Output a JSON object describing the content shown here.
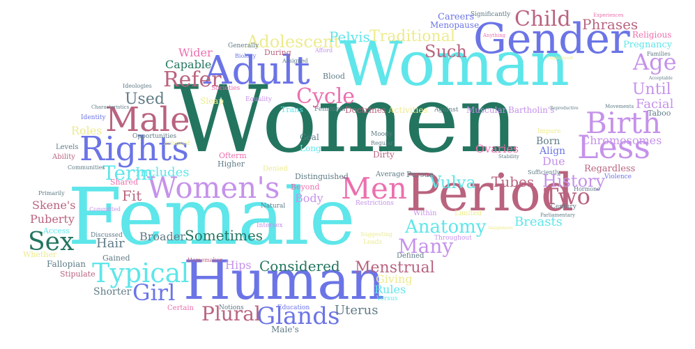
{
  "colors": {
    "teal_dark": "#23755f",
    "cyan": "#5ee6ea",
    "blue": "#6b74e6",
    "mauve": "#b9637e",
    "lavender": "#c592ea",
    "pink": "#ec6fae",
    "yellow": "#eceb8e",
    "grey": "#5f7b86"
  },
  "words": [
    {
      "text": "Women",
      "color": "teal_dark"
    },
    {
      "text": "Female",
      "color": "cyan"
    },
    {
      "text": "Woman",
      "color": "cyan"
    },
    {
      "text": "Human",
      "color": "blue"
    },
    {
      "text": "Period",
      "color": "mauve"
    },
    {
      "text": "Gender",
      "color": "blue"
    },
    {
      "text": "Adult",
      "color": "blue"
    },
    {
      "text": "Rights",
      "color": "blue"
    },
    {
      "text": "Women's",
      "color": "lavender"
    },
    {
      "text": "Male",
      "color": "mauve"
    },
    {
      "text": "Men",
      "color": "pink"
    },
    {
      "text": "Less",
      "color": "lavender"
    },
    {
      "text": "Birth",
      "color": "lavender"
    },
    {
      "text": "Typical",
      "color": "cyan"
    },
    {
      "text": "Sex",
      "color": "teal_dark"
    },
    {
      "text": "Term",
      "color": "cyan"
    },
    {
      "text": "Glands",
      "color": "blue"
    },
    {
      "text": "Girl",
      "color": "blue"
    },
    {
      "text": "Child",
      "color": "mauve"
    },
    {
      "text": "Age",
      "color": "lavender"
    },
    {
      "text": "Two",
      "color": "mauve"
    },
    {
      "text": "Cycle",
      "color": "pink"
    },
    {
      "text": "Refer",
      "color": "mauve"
    },
    {
      "text": "Anatomy",
      "color": "cyan"
    },
    {
      "text": "Plural",
      "color": "mauve"
    },
    {
      "text": "Many",
      "color": "lavender"
    },
    {
      "text": "Vulva",
      "color": "cyan"
    },
    {
      "text": "History",
      "color": "lavender"
    },
    {
      "text": "Menstrual",
      "color": "mauve"
    },
    {
      "text": "Adolescent",
      "color": "yellow"
    },
    {
      "text": "Such",
      "color": "mauve"
    },
    {
      "text": "Traditional",
      "color": "yellow"
    },
    {
      "text": "Phrases",
      "color": "mauve"
    },
    {
      "text": "Pelvis",
      "color": "cyan"
    },
    {
      "text": "Until",
      "color": "lavender"
    },
    {
      "text": "Used",
      "color": "grey"
    },
    {
      "text": "Considered",
      "color": "teal_dark"
    },
    {
      "text": "Sometimes",
      "color": "teal_dark"
    },
    {
      "text": "Hair",
      "color": "grey"
    },
    {
      "text": "Uterus",
      "color": "grey"
    },
    {
      "text": "Includes",
      "color": "cyan"
    },
    {
      "text": "Tubes",
      "color": "mauve"
    },
    {
      "text": "Breasts",
      "color": "cyan"
    },
    {
      "text": "Facial",
      "color": "lavender"
    },
    {
      "text": "Chromosomes",
      "color": "lavender"
    },
    {
      "text": "Broader",
      "color": "grey"
    },
    {
      "text": "Fit",
      "color": "mauve"
    },
    {
      "text": "Body",
      "color": "lavender"
    },
    {
      "text": "Ovaries",
      "color": "pink"
    },
    {
      "text": "Due",
      "color": "lavender"
    },
    {
      "text": "Giving",
      "color": "yellow"
    },
    {
      "text": "Rules",
      "color": "cyan"
    },
    {
      "text": "Hips",
      "color": "lavender"
    },
    {
      "text": "Roles",
      "color": "yellow"
    },
    {
      "text": "Puberty",
      "color": "mauve"
    },
    {
      "text": "Skene's",
      "color": "mauve"
    },
    {
      "text": "Wider",
      "color": "pink"
    },
    {
      "text": "Capable",
      "color": "teal_dark"
    },
    {
      "text": "Doctrines",
      "color": "mauve"
    },
    {
      "text": "Activities",
      "color": "yellow"
    },
    {
      "text": "Muscular",
      "color": "lavender"
    },
    {
      "text": "Bartholin's",
      "color": "lavender"
    },
    {
      "text": "Shorter",
      "color": "grey"
    },
    {
      "text": "Born",
      "color": "grey"
    },
    {
      "text": "Align",
      "color": "blue"
    },
    {
      "text": "Regardless",
      "color": "mauve"
    },
    {
      "text": "Religious",
      "color": "pink"
    },
    {
      "text": "Pregnancy",
      "color": "cyan"
    },
    {
      "text": "Careers",
      "color": "blue"
    },
    {
      "text": "Menopause",
      "color": "blue"
    },
    {
      "text": "Significantly",
      "color": "grey"
    },
    {
      "text": "Taboo",
      "color": "grey"
    },
    {
      "text": "Sleap",
      "color": "yellow"
    },
    {
      "text": "Equality",
      "color": "lavender"
    },
    {
      "text": "Trans",
      "color": "cyan"
    },
    {
      "text": "Feminism",
      "color": "grey"
    },
    {
      "text": "Goal",
      "color": "grey"
    },
    {
      "text": "Long",
      "color": "cyan"
    },
    {
      "text": "Moody",
      "color": "grey"
    },
    {
      "text": "Regular",
      "color": "grey"
    },
    {
      "text": "Dirty",
      "color": "mauve"
    },
    {
      "text": "Average",
      "color": "grey"
    },
    {
      "text": "Pursue",
      "color": "grey"
    },
    {
      "text": "Denied",
      "color": "yellow"
    },
    {
      "text": "Distinguished",
      "color": "grey"
    },
    {
      "text": "Beyond",
      "color": "pink"
    },
    {
      "text": "Restrictions",
      "color": "lavender"
    },
    {
      "text": "Defined",
      "color": "grey"
    },
    {
      "text": "Within",
      "color": "lavender"
    },
    {
      "text": "Limited",
      "color": "yellow"
    },
    {
      "text": "Throughout",
      "color": "lavender"
    },
    {
      "text": "Higher",
      "color": "grey"
    },
    {
      "text": "Ofterm",
      "color": "pink"
    },
    {
      "text": "Shared",
      "color": "pink"
    },
    {
      "text": "Primarily",
      "color": "grey"
    },
    {
      "text": "Committed",
      "color": "lavender"
    },
    {
      "text": "Access",
      "color": "cyan"
    },
    {
      "text": "Discussed",
      "color": "grey"
    },
    {
      "text": "Whether",
      "color": "yellow"
    },
    {
      "text": "Fallopian",
      "color": "grey"
    },
    {
      "text": "Stipulate",
      "color": "mauve"
    },
    {
      "text": "Gained",
      "color": "grey"
    },
    {
      "text": "Homemaker",
      "color": "mauve"
    },
    {
      "text": "Certain",
      "color": "pink"
    },
    {
      "text": "Notions",
      "color": "grey"
    },
    {
      "text": "Education",
      "color": "blue"
    },
    {
      "text": "Versus",
      "color": "cyan"
    },
    {
      "text": "Male's",
      "color": "grey"
    },
    {
      "text": "Intersex",
      "color": "lavender"
    },
    {
      "text": "Natural",
      "color": "grey"
    },
    {
      "text": "Suggesting",
      "color": "yellow"
    },
    {
      "text": "Leads",
      "color": "yellow"
    },
    {
      "text": "Blood",
      "color": "grey"
    },
    {
      "text": "Afford",
      "color": "lavender"
    },
    {
      "text": "During",
      "color": "mauve"
    },
    {
      "text": "Generally",
      "color": "grey"
    },
    {
      "text": "Biology",
      "color": "blue"
    },
    {
      "text": "Assigned",
      "color": "grey"
    },
    {
      "text": "Ideologies",
      "color": "grey"
    },
    {
      "text": "Societies",
      "color": "pink"
    },
    {
      "text": "Characteristics",
      "color": "grey"
    },
    {
      "text": "Identity",
      "color": "blue"
    },
    {
      "text": "Opportunities",
      "color": "grey"
    },
    {
      "text": "Ashamed",
      "color": "yellow"
    },
    {
      "text": "Levels",
      "color": "grey"
    },
    {
      "text": "Ability",
      "color": "mauve"
    },
    {
      "text": "Communities",
      "color": "grey"
    },
    {
      "text": "Against",
      "color": "grey"
    },
    {
      "text": "Movements",
      "color": "grey"
    },
    {
      "text": "Reproductive",
      "color": "grey"
    },
    {
      "text": "Impure",
      "color": "yellow"
    },
    {
      "text": "Stability",
      "color": "grey"
    },
    {
      "text": "Sufficiently",
      "color": "grey"
    },
    {
      "text": "Hormone",
      "color": "grey"
    },
    {
      "text": "Violence",
      "color": "blue"
    },
    {
      "text": "Century",
      "color": "grey"
    },
    {
      "text": "Parliamentary",
      "color": "grey"
    },
    {
      "text": "Experiences",
      "color": "pink"
    },
    {
      "text": "Anything",
      "color": "pink"
    },
    {
      "text": "Families",
      "color": "grey"
    },
    {
      "text": "Acceptable",
      "color": "grey"
    },
    {
      "text": "Employment",
      "color": "yellow"
    },
    {
      "text": "Assignment",
      "color": "yellow"
    }
  ]
}
